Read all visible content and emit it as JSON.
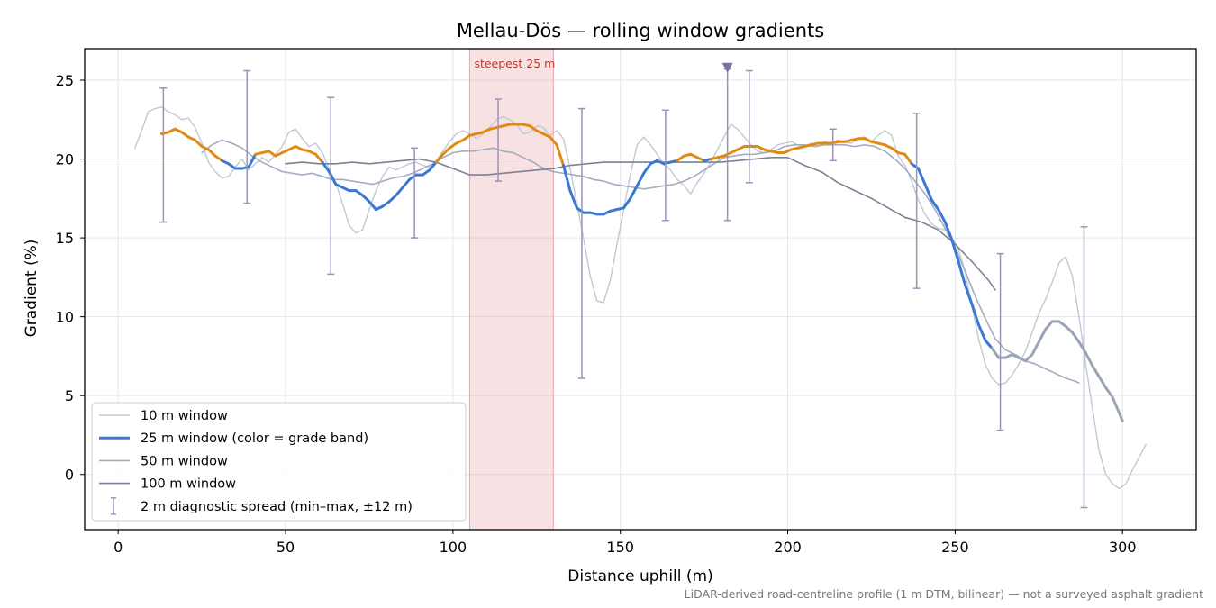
{
  "chart_data": {
    "type": "line",
    "title": "Mellau-Dös — rolling window gradients",
    "xlabel": "Distance uphill (m)",
    "ylabel": "Gradient (%)",
    "xlim": [
      -10,
      322
    ],
    "ylim": [
      -3.5,
      27
    ],
    "xticks": [
      0,
      50,
      100,
      150,
      200,
      250,
      300
    ],
    "yticks": [
      0,
      5,
      10,
      15,
      20,
      25
    ],
    "grid": true,
    "legend_position": "lower-left",
    "footnote": "LiDAR-derived road-centreline profile (1 m DTM, bilinear) — not a surveyed asphalt gradient",
    "annotations": [
      {
        "type": "span",
        "x": [
          105,
          130
        ],
        "label": "steepest 25 m",
        "color": "#e8a8b0"
      },
      {
        "type": "marker",
        "shape": "triangle-down",
        "x": 182,
        "y": 25.7,
        "color": "#7b6fa0"
      }
    ],
    "legend": [
      {
        "label": "10 m window",
        "style": "thin-light"
      },
      {
        "label": "25 m window (color = grade band)",
        "style": "thick-blue"
      },
      {
        "label": "50 m window",
        "style": "medium-gray"
      },
      {
        "label": "100 m window",
        "style": "dark-gray"
      },
      {
        "label": "2 m diagnostic spread (min–max, ±12 m)",
        "style": "errorbar"
      }
    ],
    "series": [
      {
        "id": "w10",
        "color": "#c3c8d2",
        "x": [
          5,
          7,
          9,
          11,
          13,
          15,
          17,
          19,
          21,
          23,
          25,
          27,
          29,
          31,
          33,
          35,
          37,
          39,
          41,
          43,
          45,
          47,
          49,
          51,
          53,
          55,
          57,
          59,
          61,
          63,
          65,
          67,
          69,
          71,
          73,
          75,
          77,
          79,
          81,
          83,
          85,
          87,
          89,
          91,
          93,
          95,
          97,
          99,
          101,
          103,
          105,
          107,
          109,
          111,
          113,
          115,
          117,
          119,
          121,
          123,
          125,
          127,
          129,
          131,
          133,
          135,
          137,
          139,
          141,
          143,
          145,
          147,
          149,
          151,
          153,
          155,
          157,
          159,
          161,
          163,
          165,
          167,
          169,
          171,
          173,
          175,
          177,
          179,
          181,
          183,
          185,
          187,
          189,
          191,
          193,
          195,
          197,
          199,
          201,
          203,
          205,
          207,
          209,
          211,
          213,
          215,
          217,
          219,
          221,
          223,
          225,
          227,
          229,
          231,
          233,
          235,
          237,
          239,
          241,
          243,
          245,
          247,
          249,
          251,
          253,
          255,
          257,
          259,
          261,
          263,
          265,
          267,
          269,
          271,
          273,
          275,
          277,
          279,
          281,
          283,
          285,
          287,
          289,
          291,
          293,
          295,
          297,
          299,
          301,
          303,
          305,
          307
        ],
        "y": [
          20.7,
          21.8,
          23.0,
          23.2,
          23.3,
          23.0,
          22.8,
          22.5,
          22.6,
          22.0,
          21.0,
          19.8,
          19.2,
          18.8,
          18.9,
          19.5,
          20.0,
          19.3,
          19.7,
          20.1,
          19.8,
          20.3,
          20.8,
          21.7,
          21.9,
          21.3,
          20.8,
          21.0,
          20.4,
          19.4,
          18.5,
          17.2,
          15.8,
          15.3,
          15.5,
          16.8,
          18.0,
          18.9,
          19.5,
          19.3,
          19.5,
          19.7,
          19.8,
          19.6,
          19.5,
          19.9,
          20.5,
          21.1,
          21.6,
          21.8,
          21.6,
          21.3,
          21.6,
          22.0,
          22.5,
          22.7,
          22.5,
          22.2,
          21.6,
          21.7,
          22.1,
          22.0,
          21.5,
          21.8,
          21.3,
          19.4,
          17.2,
          15.0,
          12.6,
          11.0,
          10.9,
          12.3,
          14.6,
          16.8,
          19.0,
          20.9,
          21.4,
          20.9,
          20.3,
          19.7,
          19.3,
          18.7,
          18.3,
          17.8,
          18.5,
          19.1,
          19.8,
          20.6,
          21.4,
          22.2,
          21.9,
          21.4,
          20.9,
          20.5,
          20.4,
          20.6,
          20.9,
          21.0,
          21.1,
          20.9,
          20.8,
          21.0,
          20.8,
          21.1,
          21.0,
          21.2,
          21.1,
          21.0,
          21.3,
          21.4,
          21.1,
          21.5,
          21.8,
          21.5,
          20.2,
          19.6,
          18.6,
          17.4,
          16.5,
          15.9,
          15.6,
          15.5,
          15.0,
          14.3,
          12.8,
          10.7,
          8.6,
          7.0,
          6.1,
          5.7,
          5.8,
          6.3,
          7.0,
          7.8,
          9.0,
          10.2,
          11.1,
          12.2,
          13.4,
          13.8,
          12.6,
          10.0,
          7.0,
          4.2,
          1.5,
          0.0,
          -0.6,
          -0.9,
          -0.6,
          0.3,
          1.1,
          1.9
        ]
      },
      {
        "id": "w25",
        "color_bands": [
          {
            "min": 20,
            "color": "#e08a12"
          },
          {
            "min": 0,
            "color": "#3a78d4"
          }
        ],
        "tail_from_x": 262,
        "tail_color": "#9aa4b4",
        "x": [
          13,
          15,
          17,
          19,
          21,
          23,
          25,
          27,
          29,
          31,
          33,
          35,
          37,
          39,
          41,
          43,
          45,
          47,
          49,
          51,
          53,
          55,
          57,
          59,
          61,
          63,
          65,
          67,
          69,
          71,
          73,
          75,
          77,
          79,
          81,
          83,
          85,
          87,
          89,
          91,
          93,
          95,
          97,
          99,
          101,
          103,
          105,
          107,
          109,
          111,
          113,
          115,
          117,
          119,
          121,
          123,
          125,
          127,
          129,
          131,
          133,
          135,
          137,
          139,
          141,
          143,
          145,
          147,
          149,
          151,
          153,
          155,
          157,
          159,
          161,
          163,
          165,
          167,
          169,
          171,
          173,
          175,
          177,
          179,
          181,
          183,
          185,
          187,
          189,
          191,
          193,
          195,
          197,
          199,
          201,
          203,
          205,
          207,
          209,
          211,
          213,
          215,
          217,
          219,
          221,
          223,
          225,
          227,
          229,
          231,
          233,
          235,
          237,
          239,
          241,
          243,
          245,
          247,
          249,
          251,
          253,
          255,
          257,
          259,
          261,
          263,
          265,
          267,
          269,
          271,
          273,
          275,
          277,
          279,
          281,
          283,
          285,
          287,
          289,
          291,
          293,
          295,
          297,
          299,
          300
        ],
        "y": [
          21.6,
          21.7,
          21.9,
          21.7,
          21.4,
          21.2,
          20.8,
          20.6,
          20.2,
          19.9,
          19.7,
          19.4,
          19.4,
          19.5,
          20.3,
          20.4,
          20.5,
          20.2,
          20.4,
          20.6,
          20.8,
          20.6,
          20.5,
          20.3,
          19.8,
          19.2,
          18.4,
          18.2,
          18.0,
          18.0,
          17.7,
          17.3,
          16.8,
          17.0,
          17.3,
          17.7,
          18.2,
          18.7,
          19.0,
          19.0,
          19.3,
          19.8,
          20.3,
          20.7,
          21.0,
          21.2,
          21.5,
          21.6,
          21.7,
          21.9,
          22.0,
          22.1,
          22.2,
          22.2,
          22.2,
          22.1,
          21.8,
          21.6,
          21.4,
          20.9,
          19.6,
          18.0,
          16.9,
          16.6,
          16.6,
          16.5,
          16.5,
          16.7,
          16.8,
          16.9,
          17.5,
          18.3,
          19.1,
          19.7,
          19.9,
          19.7,
          19.8,
          19.9,
          20.2,
          20.3,
          20.1,
          19.9,
          20.0,
          20.1,
          20.2,
          20.4,
          20.6,
          20.8,
          20.8,
          20.8,
          20.6,
          20.5,
          20.4,
          20.4,
          20.6,
          20.7,
          20.8,
          20.9,
          21.0,
          21.0,
          21.0,
          21.1,
          21.1,
          21.2,
          21.3,
          21.3,
          21.1,
          21.0,
          20.9,
          20.7,
          20.4,
          20.3,
          19.7,
          19.4,
          18.4,
          17.4,
          16.8,
          16.0,
          14.9,
          13.5,
          12.0,
          10.8,
          9.5,
          8.5,
          8.0,
          7.4,
          7.4,
          7.6,
          7.4,
          7.2,
          7.6,
          8.4,
          9.2,
          9.7,
          9.7,
          9.4,
          9.0,
          8.4,
          7.7,
          6.9,
          6.2,
          5.5,
          4.9,
          3.9,
          3.4
        ]
      },
      {
        "id": "w50",
        "color": "#a3adc0",
        "x": [
          25,
          28,
          31,
          34,
          37,
          40,
          43,
          46,
          49,
          52,
          55,
          58,
          61,
          64,
          67,
          70,
          73,
          76,
          79,
          82,
          85,
          88,
          91,
          94,
          97,
          100,
          103,
          106,
          109,
          112,
          115,
          118,
          121,
          124,
          127,
          130,
          133,
          136,
          139,
          142,
          145,
          148,
          151,
          154,
          157,
          160,
          163,
          166,
          169,
          172,
          175,
          178,
          181,
          184,
          187,
          190,
          193,
          196,
          199,
          202,
          205,
          208,
          211,
          214,
          217,
          220,
          223,
          226,
          229,
          232,
          235,
          238,
          241,
          244,
          247,
          250,
          253,
          256,
          259,
          262,
          265,
          268,
          271,
          274,
          277,
          280,
          283,
          286,
          287
        ],
        "y": [
          20.4,
          20.9,
          21.2,
          21.0,
          20.7,
          20.2,
          19.8,
          19.5,
          19.2,
          19.1,
          19.0,
          19.1,
          18.9,
          18.7,
          18.7,
          18.6,
          18.5,
          18.4,
          18.6,
          18.8,
          18.9,
          19.1,
          19.4,
          19.7,
          20.1,
          20.4,
          20.5,
          20.5,
          20.6,
          20.7,
          20.5,
          20.4,
          20.1,
          19.8,
          19.4,
          19.2,
          19.1,
          19.0,
          18.9,
          18.7,
          18.6,
          18.4,
          18.3,
          18.2,
          18.1,
          18.2,
          18.3,
          18.4,
          18.6,
          18.9,
          19.3,
          19.7,
          20.1,
          20.2,
          20.3,
          20.3,
          20.4,
          20.5,
          20.8,
          20.9,
          20.9,
          20.8,
          20.9,
          20.9,
          20.9,
          20.8,
          20.9,
          20.8,
          20.5,
          20.0,
          19.4,
          18.6,
          17.8,
          16.8,
          15.6,
          14.4,
          12.9,
          11.3,
          9.9,
          8.6,
          7.9,
          7.6,
          7.2,
          7.0,
          6.7,
          6.4,
          6.1,
          5.9,
          5.8
        ]
      },
      {
        "id": "w100",
        "color": "#7a8294",
        "x": [
          50,
          55,
          60,
          65,
          70,
          75,
          80,
          85,
          90,
          95,
          100,
          105,
          110,
          115,
          120,
          125,
          130,
          135,
          140,
          145,
          150,
          155,
          160,
          165,
          170,
          175,
          180,
          185,
          190,
          195,
          200,
          205,
          210,
          215,
          220,
          225,
          230,
          235,
          240,
          245,
          250,
          255,
          260,
          262
        ],
        "y": [
          19.7,
          19.8,
          19.7,
          19.7,
          19.8,
          19.7,
          19.8,
          19.9,
          20.0,
          19.8,
          19.4,
          19.0,
          19.0,
          19.1,
          19.2,
          19.3,
          19.4,
          19.6,
          19.7,
          19.8,
          19.8,
          19.8,
          19.8,
          19.8,
          19.8,
          19.8,
          19.8,
          19.9,
          20.0,
          20.1,
          20.1,
          19.6,
          19.2,
          18.5,
          18.0,
          17.5,
          16.9,
          16.3,
          16.0,
          15.5,
          14.6,
          13.5,
          12.3,
          11.7
        ]
      }
    ],
    "error_bars": {
      "label": "2 m diagnostic spread (min–max, ±12 m)",
      "color": "#9a94b8",
      "points": [
        {
          "x": 13.5,
          "min": 16.0,
          "max": 24.5
        },
        {
          "x": 38.5,
          "min": 17.2,
          "max": 25.6
        },
        {
          "x": 63.5,
          "min": 12.7,
          "max": 23.9
        },
        {
          "x": 88.5,
          "min": 15.0,
          "max": 20.7
        },
        {
          "x": 113.5,
          "min": 18.6,
          "max": 23.8
        },
        {
          "x": 138.5,
          "min": 6.1,
          "max": 23.2
        },
        {
          "x": 163.5,
          "min": 16.1,
          "max": 23.1
        },
        {
          "x": 182,
          "min": 16.1,
          "max": 25.7
        },
        {
          "x": 188.5,
          "min": 18.5,
          "max": 25.6
        },
        {
          "x": 213.5,
          "min": 19.9,
          "max": 21.9
        },
        {
          "x": 238.5,
          "min": 11.8,
          "max": 22.9
        },
        {
          "x": 263.5,
          "min": 2.8,
          "max": 14.0
        },
        {
          "x": 288.5,
          "min": -2.1,
          "max": 15.7
        }
      ]
    }
  }
}
